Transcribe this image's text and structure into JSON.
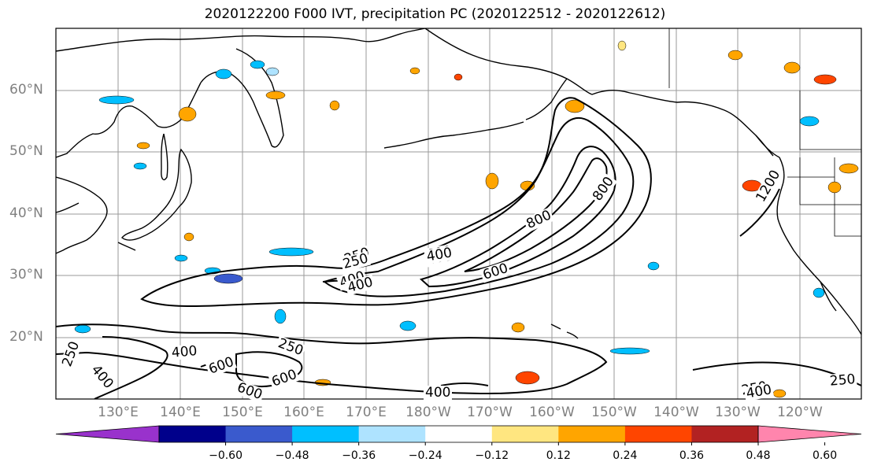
{
  "title": "2020122200 F000 IVT, precipitation PC (2020122512 - 2020122612)",
  "lat_labels": [
    "60°N",
    "50°N",
    "40°N",
    "30°N",
    "20°N"
  ],
  "lon_labels": [
    "130°E",
    "140°E",
    "150°E",
    "160°E",
    "170°E",
    "180°W",
    "170°W",
    "160°W",
    "150°W",
    "140°W",
    "130°W",
    "120°W"
  ],
  "contour_labels": [
    "250",
    "400",
    "600",
    "800",
    "800",
    "600",
    "400",
    "250",
    "1200",
    "250",
    "400",
    "400",
    "600",
    "600",
    "600",
    "400",
    "400",
    "250",
    "250",
    "400",
    "250",
    "400"
  ],
  "colorbar": {
    "colors": [
      "#9932CC",
      "#00008B",
      "#3A5ACD",
      "#00BFFF",
      "#AEE3FF",
      "#FFFFFF",
      "#FFE680",
      "#FFA500",
      "#FF4500",
      "#B22222",
      "#FF85AD"
    ],
    "tick_labels": [
      "−0.60",
      "−0.48",
      "−0.36",
      "−0.24",
      "−0.12",
      "0.12",
      "0.24",
      "0.36",
      "0.48",
      "0.60"
    ]
  },
  "legend_levels": {
    "ivt_contours": [
      250,
      400,
      600,
      800,
      1200
    ]
  }
}
